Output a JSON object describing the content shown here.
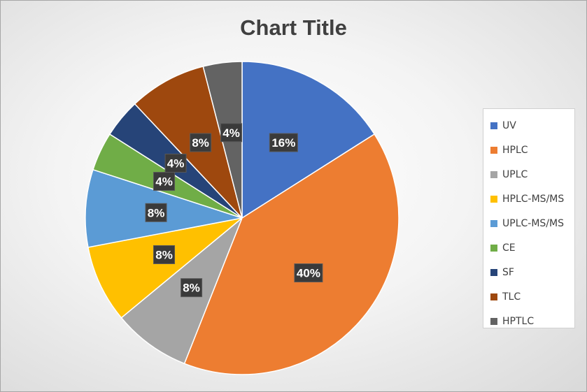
{
  "chart_data": {
    "type": "pie",
    "title": "Chart Title",
    "categories": [
      "UV",
      "HPLC",
      "UPLC",
      "HPLC-MS/MS",
      "UPLC-MS/MS",
      "CE",
      "SF",
      "TLC",
      "HPTLC"
    ],
    "values": [
      16,
      40,
      8,
      8,
      8,
      4,
      4,
      8,
      4
    ],
    "data_labels": [
      "16%",
      "40%",
      "8%",
      "8%",
      "8%",
      "4%",
      "4%",
      "8%",
      "4%"
    ],
    "colors": [
      "#4472C4",
      "#ED7D31",
      "#A5A5A5",
      "#FFC000",
      "#5B9BD5",
      "#70AD47",
      "#264478",
      "#9E480E",
      "#636363"
    ],
    "legend_position": "right"
  }
}
